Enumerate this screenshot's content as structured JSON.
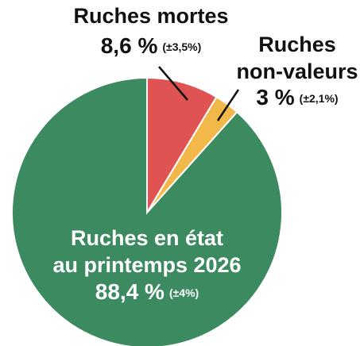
{
  "chart_data": {
    "type": "pie",
    "categories": [
      [
        "Ruches mortes"
      ],
      [
        "Ruches",
        "non-valeurs"
      ],
      [
        "Ruches en état",
        "au printemps 2026"
      ]
    ],
    "values": [
      8.6,
      3,
      88.4
    ],
    "value_labels": [
      "8,6 %",
      "3 %",
      "88,4 %"
    ],
    "errors": [
      3.5,
      2.1,
      4
    ],
    "error_labels": [
      "(±3,5%)",
      "(±2,1%)",
      "(±4%)"
    ],
    "colors": [
      "#e05353",
      "#f2b94a",
      "#3b8a60"
    ]
  }
}
